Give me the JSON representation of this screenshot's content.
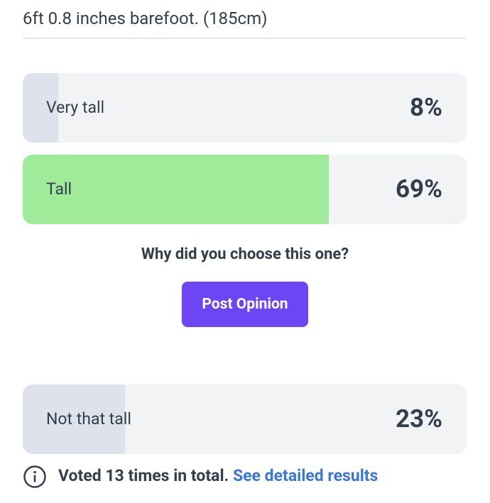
{
  "header": {
    "title": "6ft 0.8 inches barefoot. (185cm)"
  },
  "options": [
    {
      "label": "Very tall",
      "value": 8,
      "value_label": "8%",
      "selected": false
    },
    {
      "label": "Tall",
      "value": 69,
      "value_label": "69%",
      "selected": true
    },
    {
      "label": "Not that tall",
      "value": 23,
      "value_label": "23%",
      "selected": false
    }
  ],
  "prompt": "Why did you choose this one?",
  "button": "Post Opinion",
  "footer": {
    "summary": "Voted 13 times in total.",
    "link": "See detailed results"
  }
}
